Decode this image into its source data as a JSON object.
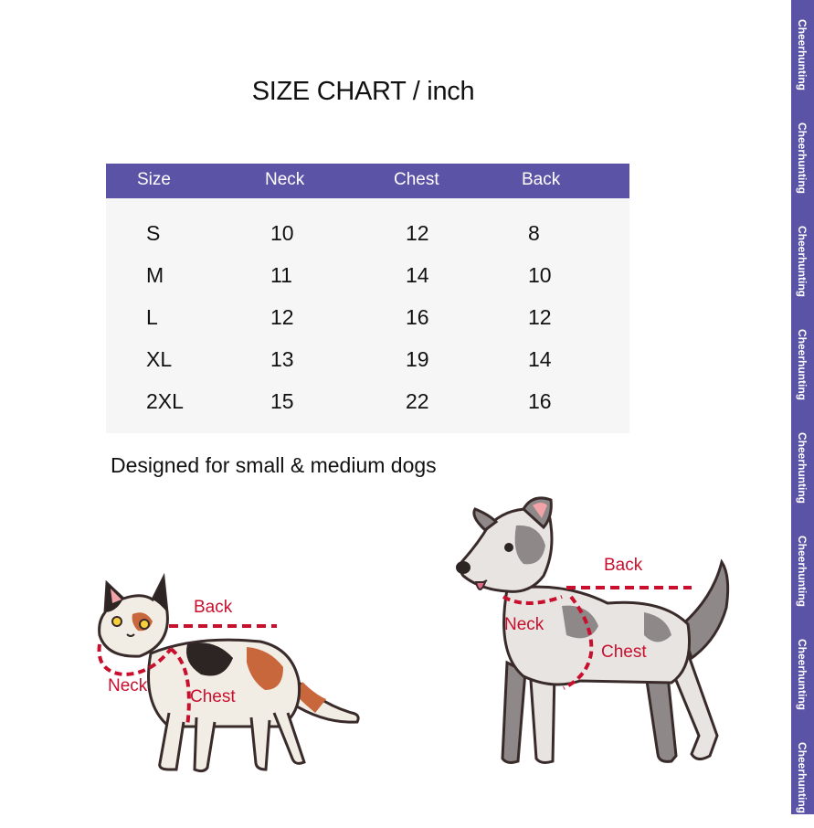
{
  "title": "SIZE CHART / inch",
  "table": {
    "headers": [
      "Size",
      "Neck",
      "Chest",
      "Back"
    ],
    "rows": [
      [
        "S",
        "10",
        "12",
        "8"
      ],
      [
        "M",
        "11",
        "14",
        "10"
      ],
      [
        "L",
        "12",
        "16",
        "12"
      ],
      [
        "XL",
        "13",
        "19",
        "14"
      ],
      [
        "2XL",
        "15",
        "22",
        "16"
      ]
    ]
  },
  "note": "Designed for small & medium dogs",
  "cat_labels": {
    "back": "Back",
    "neck": "Neck",
    "chest": "Chest"
  },
  "dog_labels": {
    "back": "Back",
    "neck": "Neck",
    "chest": "Chest"
  },
  "watermark": "Cheerhunting",
  "colors": {
    "header": "#5b53a6",
    "measure": "#c8102e"
  }
}
